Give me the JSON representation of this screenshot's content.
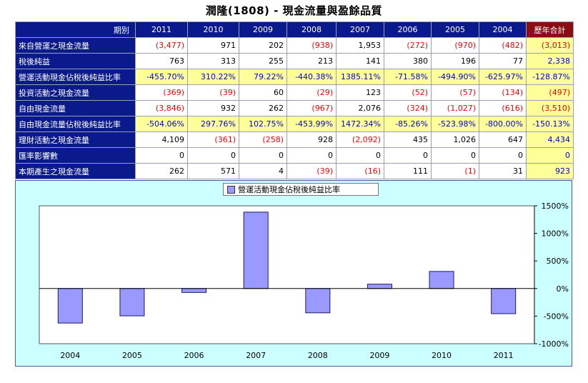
{
  "title": "潤隆(1808) -  現金流量與盈餘品質",
  "table": {
    "period_label": "期別",
    "years": [
      "2011",
      "2010",
      "2009",
      "2008",
      "2007",
      "2006",
      "2005",
      "2004"
    ],
    "total_label": "歷年合計",
    "rows": [
      {
        "label": "來自營運之現金流量",
        "values": [
          "(3,477)",
          "971",
          "202",
          "(938)",
          "1,953",
          "(272)",
          "(970)",
          "(482)"
        ],
        "total": "(3,013)",
        "pct": false
      },
      {
        "label": "稅後純益",
        "values": [
          "763",
          "313",
          "255",
          "213",
          "141",
          "380",
          "196",
          "77"
        ],
        "total": "2,338",
        "pct": false
      },
      {
        "label": "營運活動現金佔稅後純益比率",
        "values": [
          "-455.70%",
          "310.22%",
          "79.22%",
          "-440.38%",
          "1385.11%",
          "-71.58%",
          "-494.90%",
          "-625.97%"
        ],
        "total": "-128.87%",
        "pct": true
      },
      {
        "label": "投資活動之現金流量",
        "values": [
          "(369)",
          "(39)",
          "60",
          "(29)",
          "123",
          "(52)",
          "(57)",
          "(134)"
        ],
        "total": "(497)",
        "pct": false
      },
      {
        "label": "自由現金流量",
        "values": [
          "(3,846)",
          "932",
          "262",
          "(967)",
          "2,076",
          "(324)",
          "(1,027)",
          "(616)"
        ],
        "total": "(3,510)",
        "pct": false
      },
      {
        "label": "自由現金流量佔稅後純益比率",
        "values": [
          "-504.06%",
          "297.76%",
          "102.75%",
          "-453.99%",
          "1472.34%",
          "-85.26%",
          "-523.98%",
          "-800.00%"
        ],
        "total": "-150.13%",
        "pct": true
      },
      {
        "label": "理財活動之現金流量",
        "values": [
          "4,109",
          "(361)",
          "(258)",
          "928",
          "(2,092)",
          "435",
          "1,026",
          "647"
        ],
        "total": "4,434",
        "pct": false
      },
      {
        "label": "匯率影響數",
        "values": [
          "0",
          "0",
          "0",
          "0",
          "0",
          "0",
          "0",
          "0"
        ],
        "total": "0",
        "pct": false
      },
      {
        "label": "本期產生之現金流量",
        "values": [
          "262",
          "571",
          "4",
          "(39)",
          "(16)",
          "111",
          "(1)",
          "31"
        ],
        "total": "923",
        "pct": false
      }
    ]
  },
  "colors": {
    "header_bg": "#0a1a8c",
    "total_header_bg": "#8b0d14",
    "highlight": "#ffff99",
    "negative": "#ff0000",
    "percent": "#0000cc",
    "chart_bg": "#ccffff",
    "plot_bg": "#ffffff",
    "bar": "#9999ff"
  },
  "chart_data": {
    "type": "bar",
    "legend": "營運活動現金佔稅後純益比率",
    "categories": [
      "2004",
      "2005",
      "2006",
      "2007",
      "2008",
      "2009",
      "2010",
      "2011"
    ],
    "values": [
      -625.97,
      -494.9,
      -71.58,
      1385.11,
      -440.38,
      79.22,
      310.22,
      -455.7
    ],
    "ylim": [
      -1000,
      1500
    ],
    "yticks": [
      1500,
      1000,
      500,
      0,
      -500,
      -1000
    ],
    "ytick_labels": [
      "1500%",
      "1000%",
      "500%",
      "0%",
      "-500%",
      "-1000%"
    ],
    "legend_position": "top-center",
    "y_axis_side": "right",
    "grid": false
  }
}
